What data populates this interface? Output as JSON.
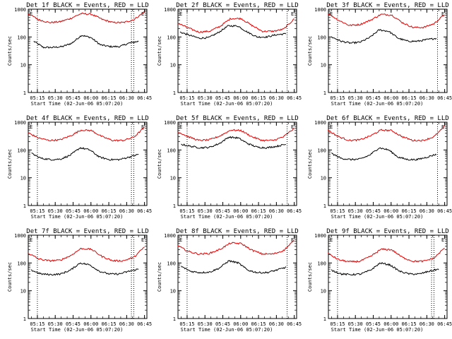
{
  "chart_data": [
    {
      "type": "line",
      "title": "Det 1f BLACK = Events, RED = LLD",
      "xlabel": "Start Time (02-Jun-06 05:07:20)",
      "ylabel": "Counts/sec",
      "yscale": "log",
      "ylim": [
        1,
        1000
      ],
      "ytick_labels": [
        "1",
        "10",
        "100",
        "1000"
      ],
      "xtick_labels": [
        "05:15",
        "05:30",
        "05:45",
        "06:00",
        "06:15",
        "06:30",
        "06:45"
      ],
      "xlim": [
        "05:07:20",
        "06:47"
      ],
      "marker_lines": [
        "05:15",
        "06:34",
        "06:36"
      ],
      "corner_markers": [
        "E",
        "E"
      ],
      "grid": false,
      "legend": "none",
      "series": [
        {
          "color": "#000000",
          "start": "05:12",
          "end": "06:40",
          "values": [
            70,
            42,
            42,
            45,
            60,
            115,
            95,
            52,
            45,
            45,
            60,
            70
          ]
        },
        {
          "color": "#e00000",
          "start": "05:07",
          "end": "06:45",
          "values": [
            700,
            420,
            330,
            350,
            460,
            690,
            660,
            430,
            330,
            330,
            420,
            800
          ]
        }
      ]
    },
    {
      "type": "line",
      "title": "Det 2f BLACK = Events, RED = LLD",
      "xlabel": "Start Time (02-Jun-06 05:07:20)",
      "ylabel": "Counts/sec",
      "yscale": "log",
      "ylim": [
        1,
        1000
      ],
      "ytick_labels": [
        "1",
        "10",
        "100",
        "1000"
      ],
      "xtick_labels": [
        "05:15",
        "05:30",
        "05:45",
        "06:00",
        "06:15",
        "06:30",
        "06:45"
      ],
      "xlim": [
        "05:07:20",
        "06:47"
      ],
      "marker_lines": [
        "05:15",
        "06:39"
      ],
      "corner_markers": [
        "E",
        "E"
      ],
      "grid": false,
      "legend": "none",
      "series": [
        {
          "color": "#000000",
          "start": "05:09",
          "end": "06:38",
          "values": [
            150,
            115,
            90,
            95,
            145,
            250,
            250,
            150,
            100,
            100,
            120,
            130
          ]
        },
        {
          "color": "#e00000",
          "start": "05:07",
          "end": "06:45",
          "values": [
            320,
            210,
            150,
            160,
            240,
            460,
            460,
            260,
            160,
            160,
            190,
            450
          ]
        }
      ]
    },
    {
      "type": "line",
      "title": "Det 3f BLACK = Events, RED = LLD",
      "xlabel": "Start Time (02-Jun-06 05:07:20)",
      "ylabel": "Counts/sec",
      "yscale": "log",
      "ylim": [
        1,
        1000
      ],
      "ytick_labels": [
        "1",
        "10",
        "100",
        "1000"
      ],
      "xtick_labels": [
        "05:15",
        "05:30",
        "05:45",
        "06:00",
        "06:15",
        "06:30",
        "06:45"
      ],
      "xlim": [
        "05:07:20",
        "06:47"
      ],
      "marker_lines": [
        "05:15",
        "06:39"
      ],
      "corner_markers": [
        "E",
        "E"
      ],
      "grid": false,
      "legend": "none",
      "series": [
        {
          "color": "#000000",
          "start": "05:10",
          "end": "06:38",
          "values": [
            100,
            70,
            60,
            65,
            95,
            180,
            160,
            90,
            70,
            70,
            80,
            90
          ]
        },
        {
          "color": "#e00000",
          "start": "05:07",
          "end": "06:45",
          "values": [
            700,
            400,
            260,
            280,
            400,
            650,
            620,
            330,
            220,
            220,
            300,
            650
          ]
        }
      ]
    },
    {
      "type": "line",
      "title": "Det 4f BLACK = Events, RED = LLD",
      "xlabel": "Start Time (02-Jun-06 05:07:20)",
      "ylabel": "Counts/sec",
      "yscale": "log",
      "ylim": [
        1,
        1000
      ],
      "ytick_labels": [
        "1",
        "10",
        "100",
        "1000"
      ],
      "xtick_labels": [
        "05:15",
        "05:30",
        "05:45",
        "06:00",
        "06:15",
        "06:30",
        "06:45"
      ],
      "xlim": [
        "05:07:20",
        "06:47"
      ],
      "marker_lines": [
        "05:15",
        "06:34",
        "06:36"
      ],
      "corner_markers": [
        "E",
        "E"
      ],
      "grid": false,
      "legend": "none",
      "series": [
        {
          "color": "#000000",
          "start": "05:10",
          "end": "06:40",
          "values": [
            75,
            50,
            45,
            47,
            65,
            120,
            100,
            55,
            45,
            45,
            55,
            70
          ]
        },
        {
          "color": "#e00000",
          "start": "05:07",
          "end": "06:45",
          "values": [
            420,
            270,
            220,
            230,
            320,
            520,
            500,
            300,
            220,
            220,
            290,
            650
          ]
        }
      ]
    },
    {
      "type": "line",
      "title": "Det 5f BLACK = Events, RED = LLD",
      "xlabel": "Start Time (02-Jun-06 05:07:20)",
      "ylabel": "Counts/sec",
      "yscale": "log",
      "ylim": [
        1,
        1000
      ],
      "ytick_labels": [
        "1",
        "10",
        "100",
        "1000"
      ],
      "xtick_labels": [
        "05:15",
        "05:30",
        "05:45",
        "06:00",
        "06:15",
        "06:30",
        "06:45"
      ],
      "xlim": [
        "05:07:20",
        "06:47"
      ],
      "marker_lines": [
        "05:15",
        "06:39"
      ],
      "corner_markers": [
        "E",
        "E"
      ],
      "grid": false,
      "legend": "none",
      "series": [
        {
          "color": "#000000",
          "start": "05:10",
          "end": "06:38",
          "values": [
            160,
            135,
            120,
            125,
            170,
            290,
            270,
            170,
            125,
            120,
            135,
            160
          ]
        },
        {
          "color": "#e00000",
          "start": "05:07",
          "end": "06:45",
          "values": [
            460,
            300,
            220,
            230,
            320,
            520,
            500,
            300,
            220,
            220,
            300,
            600
          ]
        }
      ]
    },
    {
      "type": "line",
      "title": "Det 6f BLACK = Events, RED = LLD",
      "xlabel": "Start Time (02-Jun-06 05:07:20)",
      "ylabel": "Counts/sec",
      "yscale": "log",
      "ylim": [
        1,
        1000
      ],
      "ytick_labels": [
        "1",
        "10",
        "100",
        "1000"
      ],
      "xtick_labels": [
        "05:15",
        "05:30",
        "05:45",
        "06:00",
        "06:15",
        "06:30",
        "06:45"
      ],
      "xlim": [
        "05:07:20",
        "06:47"
      ],
      "marker_lines": [
        "05:15",
        "06:39"
      ],
      "corner_markers": [
        "E",
        "E"
      ],
      "grid": false,
      "legend": "none",
      "series": [
        {
          "color": "#000000",
          "start": "05:10",
          "end": "06:38",
          "values": [
            75,
            50,
            45,
            47,
            65,
            120,
            100,
            55,
            45,
            45,
            55,
            70
          ]
        },
        {
          "color": "#e00000",
          "start": "05:07",
          "end": "06:45",
          "values": [
            500,
            300,
            220,
            230,
            320,
            520,
            500,
            300,
            220,
            220,
            300,
            700
          ]
        }
      ]
    },
    {
      "type": "line",
      "title": "Det 7f BLACK = Events, RED = LLD",
      "xlabel": "Start Time (02-Jun-06 05:07:20)",
      "ylabel": "Counts/sec",
      "yscale": "log",
      "ylim": [
        1,
        1000
      ],
      "ytick_labels": [
        "1",
        "10",
        "100",
        "1000"
      ],
      "xtick_labels": [
        "05:15",
        "05:30",
        "05:45",
        "06:00",
        "06:15",
        "06:30",
        "06:45"
      ],
      "xlim": [
        "05:07:20",
        "06:47"
      ],
      "marker_lines": [
        "05:15",
        "06:34",
        "06:36"
      ],
      "corner_markers": [
        "E",
        "E"
      ],
      "grid": false,
      "legend": "none",
      "series": [
        {
          "color": "#000000",
          "start": "05:10",
          "end": "06:40",
          "values": [
            55,
            40,
            38,
            40,
            55,
            100,
            85,
            50,
            40,
            40,
            50,
            60
          ]
        },
        {
          "color": "#e00000",
          "start": "05:07",
          "end": "06:45",
          "values": [
            230,
            140,
            120,
            125,
            180,
            330,
            310,
            170,
            120,
            120,
            160,
            380
          ]
        }
      ]
    },
    {
      "type": "line",
      "title": "Det 8f BLACK = Events, RED = LLD",
      "xlabel": "Start Time (02-Jun-06 05:07:20)",
      "ylabel": "Counts/sec",
      "yscale": "log",
      "ylim": [
        1,
        1000
      ],
      "ytick_labels": [
        "1",
        "10",
        "100",
        "1000"
      ],
      "xtick_labels": [
        "05:15",
        "05:30",
        "05:45",
        "06:00",
        "06:15",
        "06:30",
        "06:45"
      ],
      "xlim": [
        "05:07:20",
        "06:47"
      ],
      "marker_lines": [
        "05:15",
        "06:39"
      ],
      "corner_markers": [
        "E",
        "E"
      ],
      "grid": false,
      "legend": "none",
      "series": [
        {
          "color": "#000000",
          "start": "05:10",
          "end": "06:38",
          "values": [
            75,
            50,
            45,
            47,
            65,
            120,
            100,
            55,
            45,
            45,
            55,
            70
          ]
        },
        {
          "color": "#e00000",
          "start": "05:07",
          "end": "06:45",
          "values": [
            420,
            260,
            210,
            220,
            310,
            520,
            500,
            290,
            210,
            210,
            280,
            650
          ]
        }
      ]
    },
    {
      "type": "line",
      "title": "Det 9f BLACK = Events, RED = LLD",
      "xlabel": "Start Time (02-Jun-06 05:07:20)",
      "ylabel": "Counts/sec",
      "yscale": "log",
      "ylim": [
        1,
        1000
      ],
      "ytick_labels": [
        "1",
        "10",
        "100",
        "1000"
      ],
      "xtick_labels": [
        "05:15",
        "05:30",
        "05:45",
        "06:00",
        "06:15",
        "06:30",
        "06:45"
      ],
      "xlim": [
        "05:07:20",
        "06:47"
      ],
      "marker_lines": [
        "05:15",
        "06:34",
        "06:36"
      ],
      "corner_markers": [
        "E",
        "E"
      ],
      "grid": false,
      "legend": "none",
      "series": [
        {
          "color": "#000000",
          "start": "05:10",
          "end": "06:40",
          "values": [
            55,
            40,
            38,
            40,
            55,
            100,
            85,
            50,
            40,
            40,
            50,
            60
          ]
        },
        {
          "color": "#e00000",
          "start": "05:07",
          "end": "06:45",
          "values": [
            220,
            130,
            110,
            115,
            170,
            310,
            300,
            160,
            115,
            115,
            150,
            350
          ]
        }
      ]
    }
  ]
}
